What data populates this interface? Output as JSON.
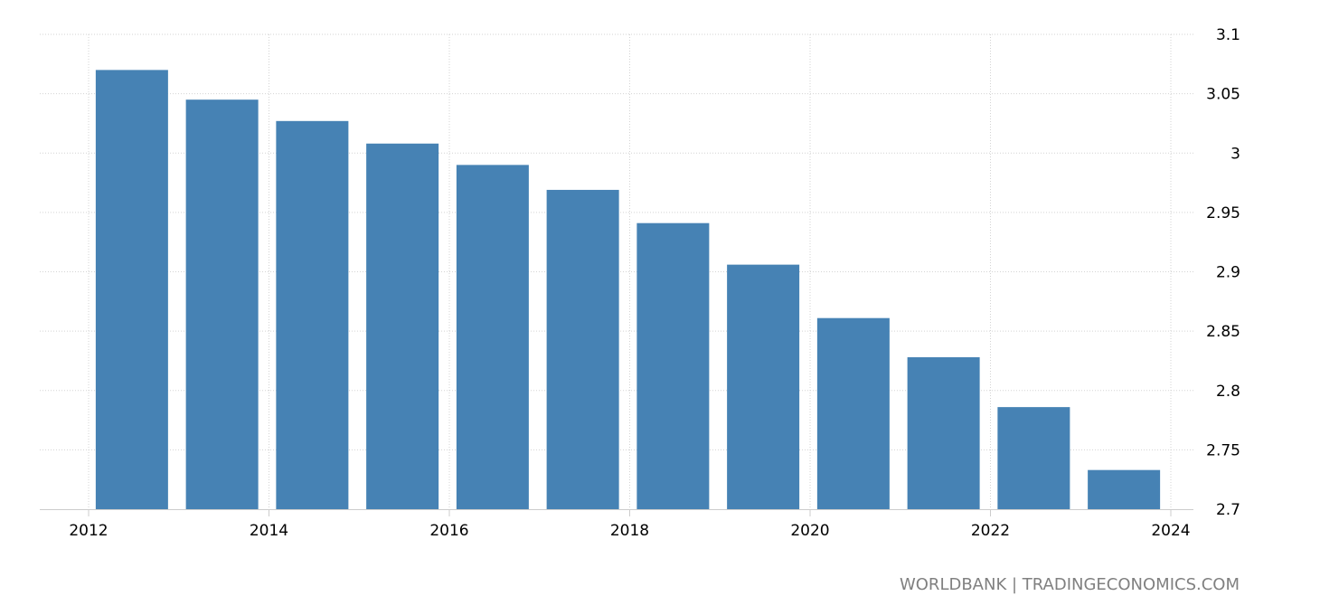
{
  "chart_data": {
    "type": "bar",
    "categories": [
      "2012",
      "2013",
      "2014",
      "2015",
      "2016",
      "2017",
      "2018",
      "2019",
      "2020",
      "2021",
      "2022",
      "2023"
    ],
    "values": [
      3.07,
      3.045,
      3.027,
      3.008,
      2.99,
      2.969,
      2.941,
      2.906,
      2.861,
      2.828,
      2.786,
      2.733
    ],
    "title": "",
    "xlabel": "",
    "ylabel": "",
    "ylim": [
      2.7,
      3.1
    ],
    "xlim": [
      2012,
      2024
    ],
    "y_ticks": [
      2.7,
      2.75,
      2.8,
      2.85,
      2.9,
      2.95,
      3.0,
      3.05,
      3.1
    ],
    "y_tick_labels": [
      "2.7",
      "2.75",
      "2.8",
      "2.85",
      "2.9",
      "2.95",
      "3",
      "3.05",
      "3.1"
    ],
    "x_ticks": [
      2012,
      2014,
      2016,
      2018,
      2020,
      2022,
      2024
    ],
    "x_tick_labels": [
      "2012",
      "2014",
      "2016",
      "2018",
      "2020",
      "2022",
      "2024"
    ],
    "y_axis_position": "right",
    "grid": true,
    "bar_color": "#4682b4",
    "grid_color": "#d3d3d3"
  },
  "source": "WORLDBANK | TRADINGECONOMICS.COM"
}
